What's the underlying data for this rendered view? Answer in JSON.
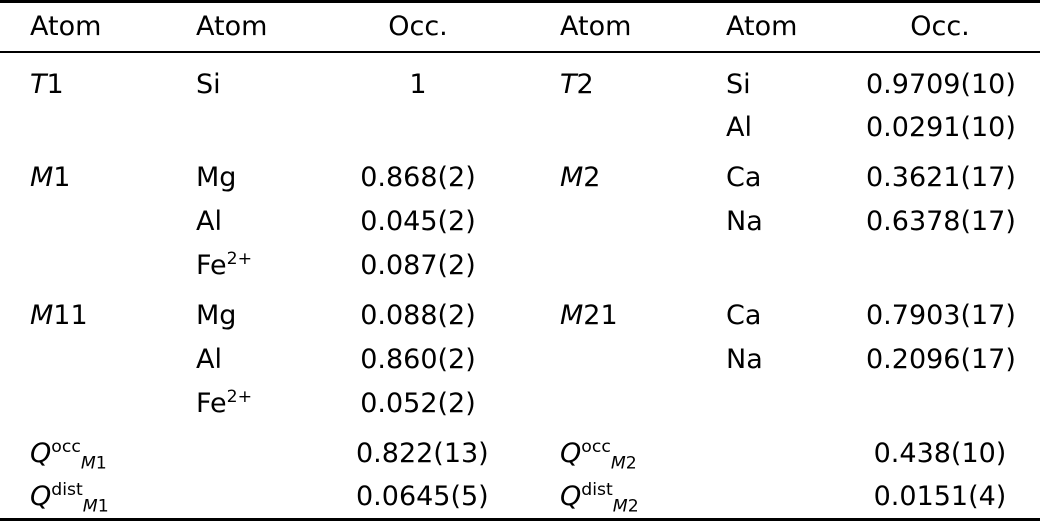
{
  "page": {
    "background_color": "#ffffff",
    "text_color": "#000000",
    "rule_color": "#000000"
  },
  "table": {
    "header": [
      "Atom",
      "Atom",
      "Occ.",
      "Atom",
      "Atom",
      "Occ."
    ],
    "rows": [
      {
        "first": true,
        "left": {
          "site": [
            {
              "t": "T",
              "i": true
            },
            {
              "t": "1"
            }
          ],
          "atom": [
            {
              "t": "Si"
            }
          ],
          "occ": "1"
        },
        "right": {
          "site": [
            {
              "t": "T",
              "i": true
            },
            {
              "t": "2"
            }
          ],
          "atom": [
            {
              "t": "Si"
            }
          ],
          "occ": "0.9709(10)"
        }
      },
      {
        "left": {
          "site": [],
          "atom": [],
          "occ": ""
        },
        "right": {
          "site": [],
          "atom": [
            {
              "t": "Al"
            }
          ],
          "occ": "0.0291(10)"
        }
      },
      {
        "group_start": true,
        "left": {
          "site": [
            {
              "t": "M",
              "i": true
            },
            {
              "t": "1"
            }
          ],
          "atom": [
            {
              "t": "Mg"
            }
          ],
          "occ": "0.868(2)"
        },
        "right": {
          "site": [
            {
              "t": "M",
              "i": true
            },
            {
              "t": "2"
            }
          ],
          "atom": [
            {
              "t": "Ca"
            }
          ],
          "occ": "0.3621(17)"
        }
      },
      {
        "left": {
          "site": [],
          "atom": [
            {
              "t": "Al"
            }
          ],
          "occ": "0.045(2)"
        },
        "right": {
          "site": [],
          "atom": [
            {
              "t": "Na"
            }
          ],
          "occ": "0.6378(17)"
        }
      },
      {
        "left": {
          "site": [],
          "atom": [
            {
              "t": "Fe"
            },
            {
              "t": "2+",
              "sup": true
            }
          ],
          "occ": "0.087(2)"
        },
        "right": {
          "site": [],
          "atom": [],
          "occ": ""
        }
      },
      {
        "group_start": true,
        "left": {
          "site": [
            {
              "t": "M",
              "i": true
            },
            {
              "t": "11"
            }
          ],
          "atom": [
            {
              "t": "Mg"
            }
          ],
          "occ": "0.088(2)"
        },
        "right": {
          "site": [
            {
              "t": "M",
              "i": true
            },
            {
              "t": "21"
            }
          ],
          "atom": [
            {
              "t": "Ca"
            }
          ],
          "occ": "0.7903(17)"
        }
      },
      {
        "left": {
          "site": [],
          "atom": [
            {
              "t": "Al"
            }
          ],
          "occ": "0.860(2)"
        },
        "right": {
          "site": [],
          "atom": [
            {
              "t": "Na"
            }
          ],
          "occ": "0.2096(17)"
        }
      },
      {
        "left": {
          "site": [],
          "atom": [
            {
              "t": "Fe"
            },
            {
              "t": "2+",
              "sup": true
            }
          ],
          "occ": "0.052(2)"
        },
        "right": {
          "site": [],
          "atom": [],
          "occ": ""
        }
      },
      {
        "group_start": true,
        "left": {
          "site": [
            {
              "t": "Q",
              "i": true
            },
            {
              "t": "occ",
              "sup": true
            },
            {
              "t": "M",
              "sub": true,
              "i": true
            },
            {
              "t": "1",
              "sub": true
            }
          ],
          "atom": [],
          "occ": "0.822(13)"
        },
        "right": {
          "site": [
            {
              "t": "Q",
              "i": true
            },
            {
              "t": "occ",
              "sup": true
            },
            {
              "t": "M",
              "sub": true,
              "i": true
            },
            {
              "t": "2",
              "sub": true
            }
          ],
          "atom": [],
          "occ": "0.438(10)"
        }
      },
      {
        "left": {
          "site": [
            {
              "t": "Q",
              "i": true
            },
            {
              "t": "dist",
              "sup": true
            },
            {
              "t": "M",
              "sub": true,
              "i": true
            },
            {
              "t": "1",
              "sub": true
            }
          ],
          "atom": [],
          "occ": "0.0645(5)"
        },
        "right": {
          "site": [
            {
              "t": "Q",
              "i": true
            },
            {
              "t": "dist",
              "sup": true
            },
            {
              "t": "M",
              "sub": true,
              "i": true
            },
            {
              "t": "2",
              "sub": true
            }
          ],
          "atom": [],
          "occ": "0.0151(4)"
        }
      }
    ]
  }
}
